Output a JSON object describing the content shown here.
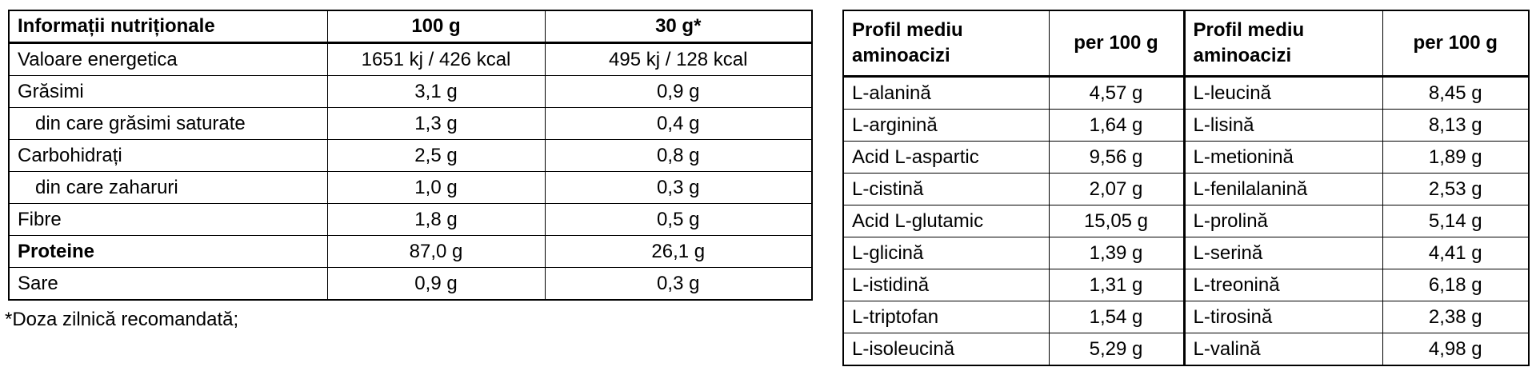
{
  "nutrition_table": {
    "header": [
      "Informații nutriționale",
      "100 g",
      "30 g*"
    ],
    "rows": [
      [
        "Valoare energetica",
        "1651 kj / 426 kcal",
        "495 kj / 128 kcal"
      ],
      [
        "Grăsimi",
        "3,1 g",
        "0,9 g"
      ],
      [
        "din care grăsimi saturate",
        "1,3 g",
        "0,4 g"
      ],
      [
        "Carbohidrați",
        "2,5 g",
        "0,8 g"
      ],
      [
        "din care zaharuri",
        "1,0 g",
        "0,3 g"
      ],
      [
        "Fibre",
        "1,8 g",
        "0,5 g"
      ],
      [
        "Proteine",
        "87,0 g",
        "26,1 g"
      ],
      [
        "Sare",
        "0,9 g",
        "0,3 g"
      ]
    ],
    "footnote": "*Doza zilnică recomandată;"
  },
  "amino_table": {
    "header": [
      "Profil mediu aminoacizi",
      "per 100 g",
      "Profil mediu aminoacizi",
      "per 100 g"
    ],
    "rows": [
      [
        "L-alanină",
        "4,57 g",
        "L-leucină",
        "8,45 g"
      ],
      [
        "L-arginină",
        "1,64 g",
        "L-lisină",
        "8,13 g"
      ],
      [
        "Acid L-aspartic",
        "9,56 g",
        "L-metionină",
        "1,89 g"
      ],
      [
        "L-cistină",
        "2,07 g",
        "L-fenilalanină",
        "2,53 g"
      ],
      [
        "Acid L-glutamic",
        "15,05 g",
        "L-prolină",
        "5,14 g"
      ],
      [
        "L-glicină",
        "1,39 g",
        "L-serină",
        "4,41 g"
      ],
      [
        "L-istidină",
        "1,31 g",
        "L-treonină",
        "6,18 g"
      ],
      [
        "L-triptofan",
        "1,54 g",
        "L-tirosină",
        "2,38 g"
      ],
      [
        "L-isoleucină",
        "5,29 g",
        "L-valină",
        "4,98 g"
      ]
    ]
  }
}
